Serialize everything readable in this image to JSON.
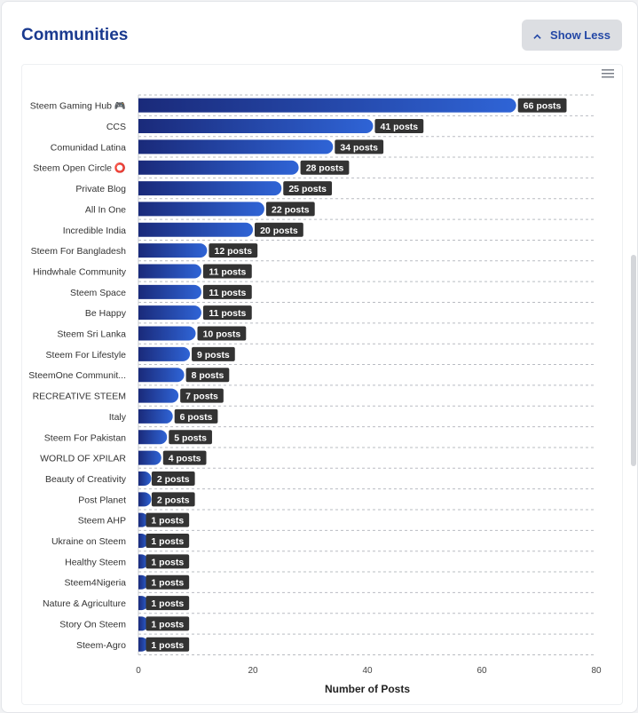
{
  "header": {
    "title": "Communities",
    "show_less_label": "Show Less"
  },
  "icons": {
    "show_less": "chevron-up-icon",
    "chart_menu": "hamburger-menu-icon"
  },
  "colors": {
    "title": "#1a3a8f",
    "bar_dark": "#1a2a7a",
    "bar_light": "#2f64d6",
    "label_bg": "#333333"
  },
  "chart_data": {
    "type": "bar",
    "orientation": "horizontal",
    "categories": [
      "Steem Gaming Hub 🎮",
      "CCS",
      "Comunidad Latina",
      "Steem Open Circle ⭕",
      "Private Blog",
      "All In One",
      "Incredible India",
      "Steem For Bangladesh",
      "Hindwhale Community",
      "Steem Space",
      "Be Happy",
      "Steem Sri Lanka",
      "Steem For Lifestyle",
      "SteemOne Communit...",
      "RECREATIVE STEEM",
      "Italy",
      "Steem For Pakistan",
      "WORLD OF XPILAR",
      "Beauty of Creativity",
      "Post Planet",
      "Steem AHP",
      "Ukraine on Steem",
      "Healthy Steem",
      "Steem4Nigeria",
      "Nature & Agriculture",
      "Story On Steem",
      "Steem-Agro"
    ],
    "values": [
      66,
      41,
      34,
      28,
      25,
      22,
      20,
      12,
      11,
      11,
      11,
      10,
      9,
      8,
      7,
      6,
      5,
      4,
      2,
      2,
      1,
      1,
      1,
      1,
      1,
      1,
      1
    ],
    "data_labels": [
      "66 posts",
      "41 posts",
      "34 posts",
      "28 posts",
      "25 posts",
      "22 posts",
      "20 posts",
      "12 posts",
      "11 posts",
      "11 posts",
      "11 posts",
      "10 posts",
      "9 posts",
      "8 posts",
      "7 posts",
      "6 posts",
      "5 posts",
      "4 posts",
      "2 posts",
      "2 posts",
      "1 posts",
      "1 posts",
      "1 posts",
      "1 posts",
      "1 posts",
      "1 posts",
      "1 posts"
    ],
    "x_ticks": [
      "0",
      "20",
      "40",
      "60",
      "80"
    ],
    "xlim": [
      0,
      80
    ],
    "xlabel": "Number of Posts",
    "grid": true
  }
}
